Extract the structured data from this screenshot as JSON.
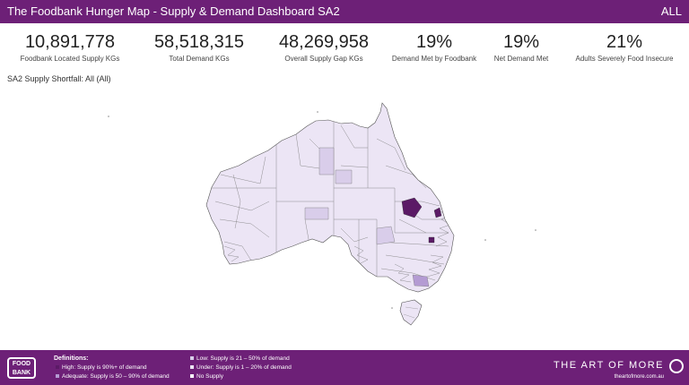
{
  "header": {
    "title": "The Foodbank Hunger Map - Supply & Demand Dashboard SA2",
    "filter": "ALL"
  },
  "kpis": [
    {
      "value": "10,891,778",
      "label": "Foodbank Located Supply KGs"
    },
    {
      "value": "58,518,315",
      "label": "Total Demand KGs"
    },
    {
      "value": "48,269,958",
      "label": "Overall Supply Gap KGs"
    },
    {
      "value": "19%",
      "label": "Demand Met by Foodbank"
    },
    {
      "value": "19%",
      "label": "Net Demand Met"
    },
    {
      "value": "21%",
      "label": "Adults Severely Food Insecure"
    }
  ],
  "map": {
    "subtitle": "SA2 Supply Shortfall: All (All)"
  },
  "footer": {
    "logo_text": "FOOD BANK",
    "definitions_title": "Definitions:",
    "definitions": [
      {
        "text": "High: Supply is 90%+ of demand",
        "color": "#5b1a66"
      },
      {
        "text": "Adequate: Supply is 50 – 90% of demand",
        "color": "#b49bd3"
      },
      {
        "text": "Low: Supply is 21 – 50% of demand",
        "color": "#d9cdea"
      },
      {
        "text": "Under: Supply is 1 – 20% of demand",
        "color": "#ece5f5"
      },
      {
        "text": "No Supply",
        "color": "#ffffff"
      }
    ],
    "brand": "THE ART OF MORE",
    "brand_url": "theartofmore.com.au"
  },
  "colors": {
    "accent": "#6d2077",
    "region_base": "#ece5f5",
    "region_light": "#d9cdea",
    "region_dark": "#5b1a66"
  }
}
